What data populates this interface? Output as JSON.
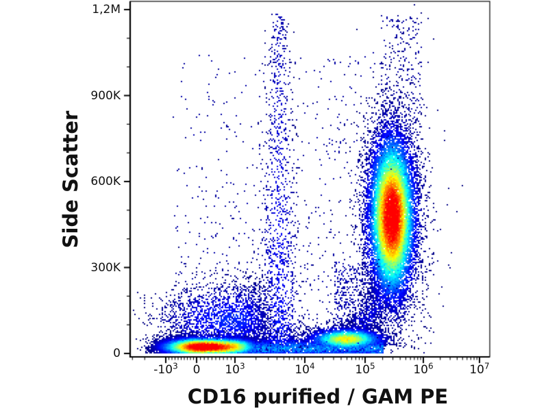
{
  "chart_data": {
    "type": "scatter",
    "subtype": "flow-cytometry-density-dot-plot",
    "title": "",
    "xlabel": "CD16 purified / GAM PE",
    "ylabel": "Side Scatter",
    "x_scale": "biexponential",
    "y_scale": "linear",
    "ylim": [
      0,
      1200000
    ],
    "xlim": [
      -3000,
      10000000
    ],
    "grid": false,
    "legend": false,
    "colormap": "jet-density",
    "dot_color_low_density": "#000080",
    "dot_color_high_density": "#ff0000",
    "x_ticks": [
      {
        "base": "-10",
        "exp": "3",
        "value": -1000
      },
      {
        "base": "0",
        "exp": "",
        "value": 0
      },
      {
        "base": "10",
        "exp": "3",
        "value": 1000
      },
      {
        "base": "10",
        "exp": "4",
        "value": 10000
      },
      {
        "base": "10",
        "exp": "5",
        "value": 100000
      },
      {
        "base": "10",
        "exp": "6",
        "value": 1000000
      },
      {
        "base": "10",
        "exp": "7",
        "value": 10000000
      }
    ],
    "y_ticks": [
      {
        "label": "0",
        "value": 0
      },
      {
        "label": "300K",
        "value": 300000
      },
      {
        "label": "600K",
        "value": 600000
      },
      {
        "label": "900K",
        "value": 900000
      },
      {
        "label": "1,2M",
        "value": 1200000
      }
    ],
    "y_minor_step": 100000,
    "populations": [
      {
        "name": "cd16-bright-granulocytes",
        "kind": "gauss2d",
        "x_mode": "log",
        "x_log10_mean": 5.45,
        "x_log10_sigma": 0.21,
        "y_mean": 480000,
        "y_sigma": 150000,
        "count": 14000,
        "peak": 1.0
      },
      {
        "name": "granulocyte-halo",
        "kind": "gauss2d",
        "x_mode": "log",
        "x_log10_mean": 5.45,
        "x_log10_sigma": 0.45,
        "y_mean": 480000,
        "y_sigma": 290000,
        "count": 450,
        "peak": 0.06
      },
      {
        "name": "cd16-negative-debris-lymphocytes",
        "kind": "gauss2d",
        "x_mode": "linear",
        "x_mean": 150,
        "x_sigma": 700,
        "x_skew_right": 1.35,
        "y_mean": 25000,
        "y_sigma": 17000,
        "count": 8000,
        "peak": 1.0
      },
      {
        "name": "low-ssc-smear-band",
        "kind": "band",
        "x_range": [
          -700,
          200000
        ],
        "y_mean": 20000,
        "y_sigma": 21000,
        "count": 3500,
        "peak": 0.33
      },
      {
        "name": "cd16-dim-monocytes",
        "kind": "gauss2d",
        "x_mode": "log",
        "x_log10_mean": 4.68,
        "x_log10_sigma": 0.33,
        "y_mean": 52000,
        "y_sigma": 20000,
        "count": 3000,
        "peak": 0.65
      },
      {
        "name": "lymphocyte-cloud",
        "kind": "gauss2d",
        "x_mode": "linear",
        "x_mean": 900,
        "x_sigma": 1100,
        "y_mean": 120000,
        "y_sigma": 65000,
        "count": 2200,
        "peak": 0.18
      },
      {
        "name": "vertical-aggregate-streak",
        "kind": "streak",
        "x_mode": "log",
        "x_log10_mean": 3.62,
        "x_log10_sigma": 0.07,
        "y_min": 20000,
        "y_max": 1190000,
        "y_power": 1.9,
        "count": 1300,
        "peak": 0.16
      },
      {
        "name": "midfield-sparse-noise",
        "kind": "cloud",
        "x_range": [
          -800,
          250000
        ],
        "y_min": 80000,
        "y_max": 1050000,
        "y_power": 1.7,
        "count": 750,
        "peak": 0.05
      },
      {
        "name": "lower-mid-speckle",
        "kind": "cloud",
        "x_range": [
          30000,
          180000
        ],
        "y_min": 90000,
        "y_max": 320000,
        "y_power": 1.3,
        "count": 450,
        "peak": 0.07
      },
      {
        "name": "band-to-granulocyte-trail",
        "kind": "trail",
        "from": {
          "x": 70000,
          "y": 70000
        },
        "to": {
          "x": 260000,
          "y": 250000
        },
        "x_sigma_log": 0.12,
        "y_sigma": 30000,
        "count": 650,
        "peak": 0.14
      },
      {
        "name": "high-ssc-sparse-above-granulocytes",
        "kind": "cloud",
        "x_range": [
          180000,
          900000
        ],
        "y_min": 750000,
        "y_max": 1180000,
        "y_power": 1.0,
        "count": 280,
        "peak": 0.05
      }
    ]
  }
}
